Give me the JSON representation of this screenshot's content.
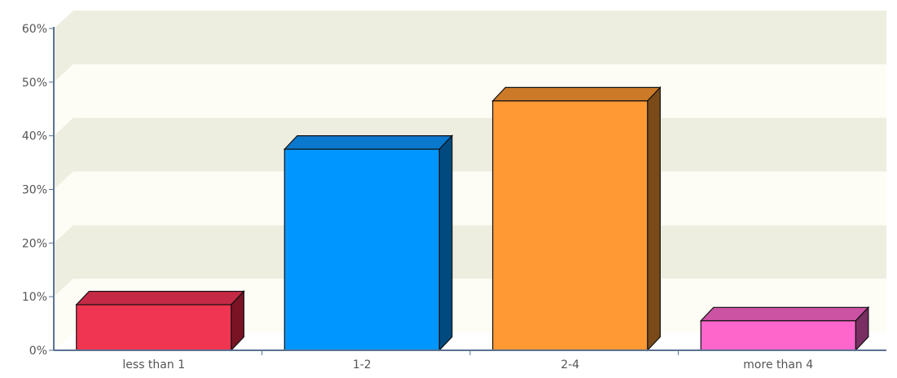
{
  "chart_data": {
    "type": "bar",
    "title": "",
    "xlabel": "",
    "ylabel": "",
    "categories": [
      "less than 1",
      "1-2",
      "2-4",
      "more than 4"
    ],
    "values": [
      8.5,
      37.5,
      46.5,
      5.5
    ],
    "ylim": [
      0,
      60
    ],
    "yticks": [
      0,
      10,
      20,
      30,
      40,
      50,
      60
    ],
    "ytick_labels": [
      "0%",
      "10%",
      "20%",
      "30%",
      "40%",
      "50%",
      "60%"
    ],
    "grid": "alternating horizontal bands",
    "legend": "none",
    "colors": [
      {
        "face": "#f03552",
        "side": "#7a1425",
        "top": "#c42a45"
      },
      {
        "face": "#0096ff",
        "side": "#004a80",
        "top": "#0a78cc"
      },
      {
        "face": "#ff9933",
        "side": "#7a4a18",
        "top": "#cc7a28"
      },
      {
        "face": "#ff66cc",
        "side": "#7a2f62",
        "top": "#cc52a3"
      }
    ],
    "band_colors": [
      "#eeeee0",
      "#fdfdf6"
    ],
    "axis_color": "#5a7290"
  }
}
